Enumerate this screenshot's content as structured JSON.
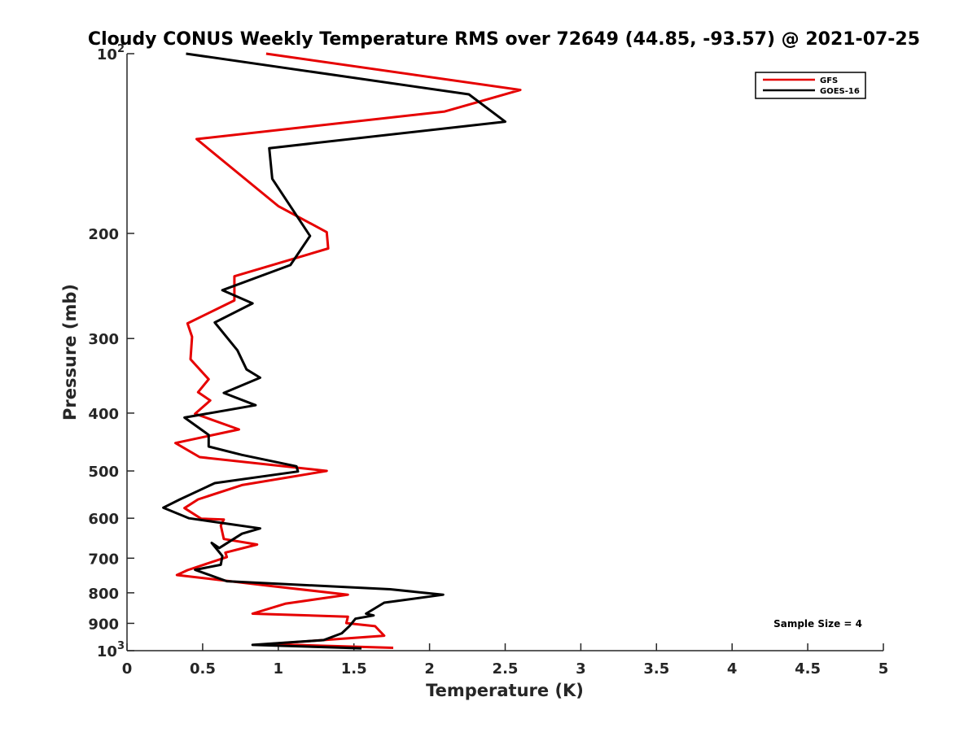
{
  "chart_data": {
    "type": "line",
    "title": "Cloudy CONUS Weekly Temperature RMS over 72649 (44.85, -93.57) @ 2021-07-25",
    "xlabel": "Temperature (K)",
    "ylabel": "Pressure (mb)",
    "xlim": [
      0,
      5
    ],
    "ylim": [
      100,
      1000
    ],
    "y_scale": "log",
    "y_reversed": true,
    "grid": false,
    "legend_position": "top-right",
    "x_ticks": [
      {
        "value": 0,
        "label": "0"
      },
      {
        "value": 0.5,
        "label": "0.5"
      },
      {
        "value": 1,
        "label": "1"
      },
      {
        "value": 1.5,
        "label": "1.5"
      },
      {
        "value": 2,
        "label": "2"
      },
      {
        "value": 2.5,
        "label": "2.5"
      },
      {
        "value": 3,
        "label": "3"
      },
      {
        "value": 3.5,
        "label": "3.5"
      },
      {
        "value": 4,
        "label": "4"
      },
      {
        "value": 4.5,
        "label": "4.5"
      },
      {
        "value": 5,
        "label": "5"
      }
    ],
    "y_ticks": [
      {
        "value": 100,
        "label": "10",
        "exponent": "2"
      },
      {
        "value": 200,
        "label": "200"
      },
      {
        "value": 300,
        "label": "300"
      },
      {
        "value": 400,
        "label": "400"
      },
      {
        "value": 500,
        "label": "500"
      },
      {
        "value": 600,
        "label": "600"
      },
      {
        "value": 700,
        "label": "700"
      },
      {
        "value": 800,
        "label": "800"
      },
      {
        "value": 900,
        "label": "900"
      },
      {
        "value": 1000,
        "label": "10",
        "exponent": "3"
      }
    ],
    "annotation": "Sample Size = 4",
    "series": [
      {
        "name": "GFS",
        "color": "#e60000",
        "points": [
          [
            0.92,
            100
          ],
          [
            2.6,
            115
          ],
          [
            2.1,
            125
          ],
          [
            0.46,
            139
          ],
          [
            1.0,
            180
          ],
          [
            1.32,
            199
          ],
          [
            1.33,
            212
          ],
          [
            0.71,
            236
          ],
          [
            0.71,
            259
          ],
          [
            0.4,
            283
          ],
          [
            0.43,
            298
          ],
          [
            0.42,
            325
          ],
          [
            0.54,
            351
          ],
          [
            0.47,
            369
          ],
          [
            0.55,
            381
          ],
          [
            0.45,
            401
          ],
          [
            0.74,
            426
          ],
          [
            0.32,
            449
          ],
          [
            0.48,
            474
          ],
          [
            1.32,
            500
          ],
          [
            0.76,
            528
          ],
          [
            0.47,
            558
          ],
          [
            0.38,
            577
          ],
          [
            0.49,
            601
          ],
          [
            0.64,
            603
          ],
          [
            0.62,
            617
          ],
          [
            0.64,
            650
          ],
          [
            0.86,
            664
          ],
          [
            0.65,
            685
          ],
          [
            0.66,
            697
          ],
          [
            0.4,
            733
          ],
          [
            0.33,
            747
          ],
          [
            0.91,
            777
          ],
          [
            1.46,
            806
          ],
          [
            1.05,
            834
          ],
          [
            0.83,
            867
          ],
          [
            1.46,
            877
          ],
          [
            1.45,
            899
          ],
          [
            1.64,
            910
          ],
          [
            1.7,
            944
          ],
          [
            0.93,
            975
          ],
          [
            1.76,
            989
          ]
        ]
      },
      {
        "name": "GOES-16",
        "color": "#000000",
        "points": [
          [
            0.39,
            100
          ],
          [
            2.26,
            117
          ],
          [
            2.5,
            130
          ],
          [
            0.94,
            144
          ],
          [
            0.96,
            162
          ],
          [
            1.21,
            202
          ],
          [
            1.08,
            226
          ],
          [
            0.63,
            249
          ],
          [
            0.83,
            262
          ],
          [
            0.58,
            282
          ],
          [
            0.73,
            314
          ],
          [
            0.79,
            338
          ],
          [
            0.88,
            349
          ],
          [
            0.64,
            370
          ],
          [
            0.85,
            388
          ],
          [
            0.38,
            407
          ],
          [
            0.54,
            435
          ],
          [
            0.54,
            455
          ],
          [
            0.76,
            470
          ],
          [
            1.12,
            491
          ],
          [
            1.13,
            501
          ],
          [
            0.58,
            524
          ],
          [
            0.35,
            558
          ],
          [
            0.24,
            576
          ],
          [
            0.41,
            600
          ],
          [
            0.88,
            624
          ],
          [
            0.76,
            637
          ],
          [
            0.61,
            673
          ],
          [
            0.56,
            660
          ],
          [
            0.63,
            694
          ],
          [
            0.62,
            718
          ],
          [
            0.45,
            732
          ],
          [
            0.66,
            765
          ],
          [
            1.74,
            789
          ],
          [
            2.09,
            806
          ],
          [
            1.7,
            831
          ],
          [
            1.58,
            867
          ],
          [
            1.63,
            873
          ],
          [
            1.51,
            884
          ],
          [
            1.47,
            910
          ],
          [
            1.42,
            935
          ],
          [
            1.3,
            960
          ],
          [
            0.83,
            978
          ],
          [
            1.55,
            991
          ]
        ]
      }
    ]
  }
}
